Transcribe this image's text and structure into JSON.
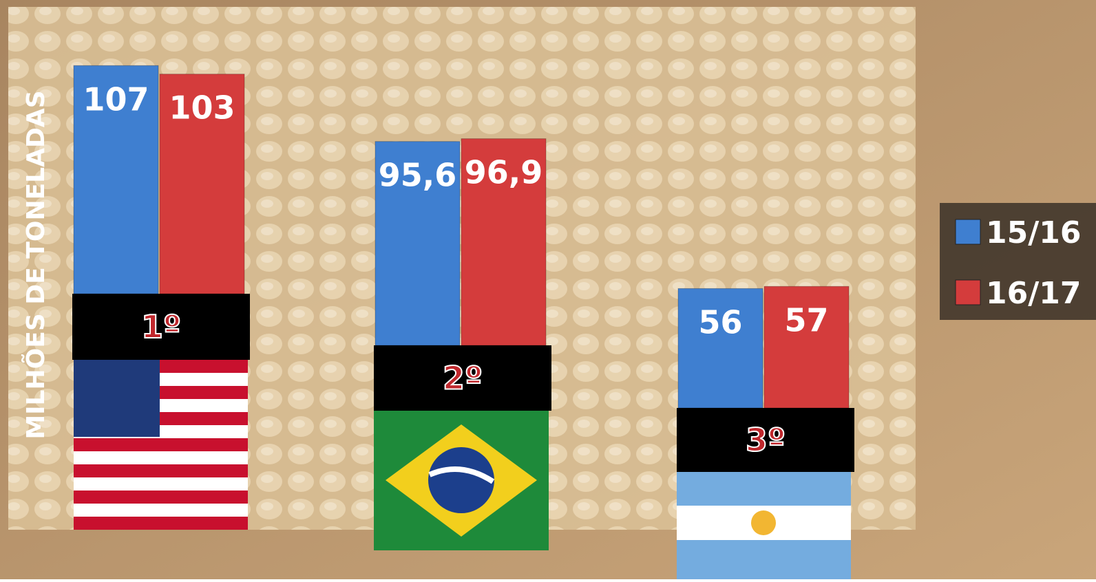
{
  "chart_data": {
    "type": "bar",
    "y_label": "MILHÕES DE TONELADAS",
    "categories": [
      "1º",
      "2º",
      "3º"
    ],
    "series": [
      {
        "name": "15/16",
        "color": "#3f7fd0",
        "values": [
          107,
          95.6,
          56
        ],
        "value_labels": [
          "107",
          "95,6",
          "56"
        ]
      },
      {
        "name": "16/17",
        "color": "#d43c3c",
        "values": [
          103,
          96.9,
          57
        ],
        "value_labels": [
          "103",
          "96,9",
          "57"
        ]
      }
    ],
    "legend": "right"
  }
}
